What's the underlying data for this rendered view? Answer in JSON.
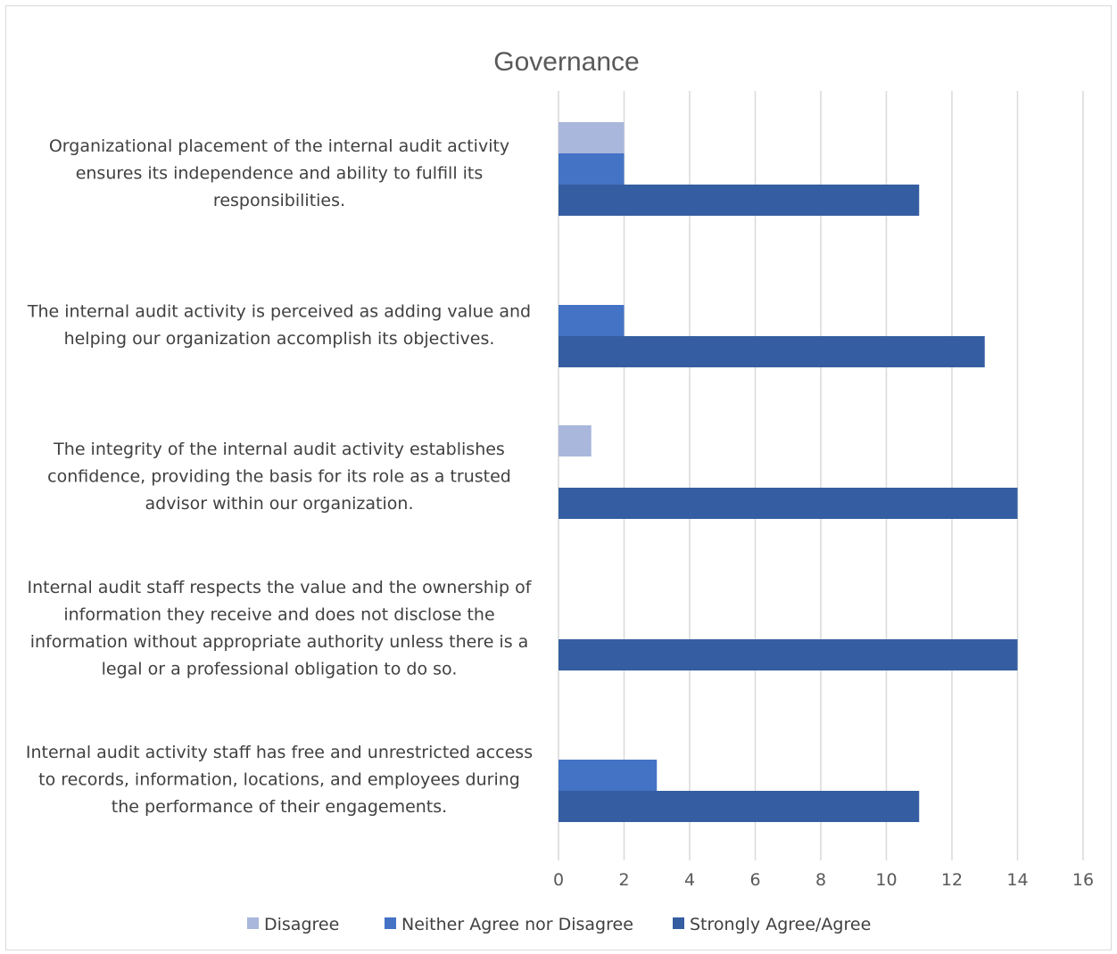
{
  "chart_data": {
    "type": "bar",
    "orientation": "horizontal",
    "title": "Governance",
    "xlabel": "",
    "ylabel": "",
    "xlim": [
      0,
      16
    ],
    "x_ticks": [
      "0",
      "2",
      "4",
      "6",
      "8",
      "10",
      "12",
      "14",
      "16"
    ],
    "grid": "vertical",
    "legend_position": "bottom",
    "categories": [
      {
        "lines": [
          "Organizational placement of the internal audit activity",
          "ensures its independence and ability to fulfill its",
          "responsibilities."
        ]
      },
      {
        "lines": [
          "The internal audit activity is perceived as adding value and",
          "helping our organization accomplish its objectives."
        ]
      },
      {
        "lines": [
          "The integrity of the internal audit activity establishes",
          "confidence, providing the basis for its role as a trusted",
          "advisor within our organization."
        ]
      },
      {
        "lines": [
          "Internal audit staff respects the value and the ownership of",
          "information they receive and does not disclose the",
          "information without appropriate authority unless there is a",
          "legal or a professional obligation to do so."
        ]
      },
      {
        "lines": [
          "Internal audit activity staff has free and unrestricted access",
          "to records, information, locations, and employees during",
          "the performance of their engagements."
        ]
      }
    ],
    "series": [
      {
        "name": "Disagree",
        "color": "#a9b7dc",
        "values": [
          2,
          0,
          1,
          0,
          0
        ]
      },
      {
        "name": "Neither Agree nor Disagree",
        "color": "#4472c4",
        "values": [
          2,
          2,
          0,
          0,
          3
        ]
      },
      {
        "name": "Strongly Agree/Agree",
        "color": "#345ea1",
        "values": [
          11,
          13,
          14,
          14,
          11
        ]
      }
    ]
  }
}
